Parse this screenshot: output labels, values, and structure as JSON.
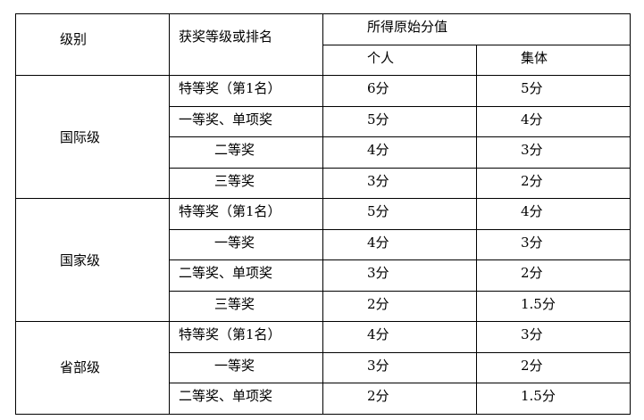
{
  "header": {
    "level": "级别",
    "award": "获奖等级或排名",
    "score": "所得原始分值",
    "individual": "个人",
    "group": "集体"
  },
  "groups": [
    {
      "level": "国际级",
      "rows": [
        {
          "award": "特等奖（第1名）",
          "individual": "6分",
          "group": "5分"
        },
        {
          "award": "一等奖、单项奖",
          "individual": "5分",
          "group": "4分"
        },
        {
          "award": "二等奖",
          "individual": "4分",
          "group": "3分"
        },
        {
          "award": "三等奖",
          "individual": "3分",
          "group": "2分"
        }
      ]
    },
    {
      "level": "国家级",
      "rows": [
        {
          "award": "特等奖（第1名）",
          "individual": "5分",
          "group": "4分"
        },
        {
          "award": "一等奖",
          "individual": "4分",
          "group": "3分"
        },
        {
          "award": "二等奖、单项奖",
          "individual": "3分",
          "group": "2分"
        },
        {
          "award": "三等奖",
          "individual": "2分",
          "group": "1.5分"
        }
      ]
    },
    {
      "level": "省部级",
      "rows": [
        {
          "award": "特等奖（第1名）",
          "individual": "4分",
          "group": "3分"
        },
        {
          "award": "一等奖",
          "individual": "3分",
          "group": "2分"
        },
        {
          "award": "二等奖、单项奖",
          "individual": "2分",
          "group": "1.5分"
        }
      ]
    }
  ]
}
